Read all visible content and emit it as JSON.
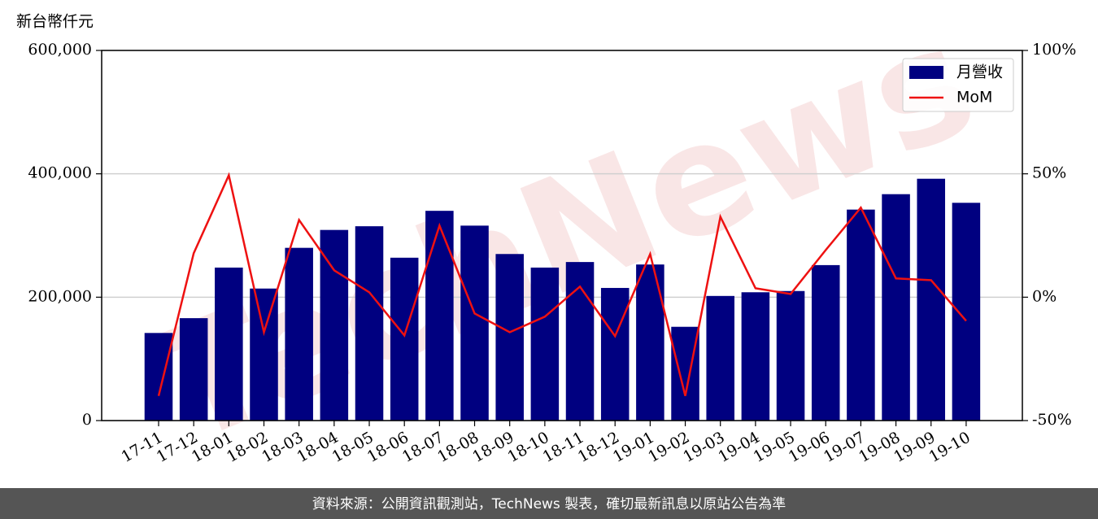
{
  "chart_data": {
    "type": "bar",
    "y_label": "新台幣仟元",
    "watermark": "TechNews",
    "footer": "資料來源：公開資訊觀測站，TechNews 製表，確切最新訊息以原站公告為準",
    "categories": [
      "17-11",
      "17-12",
      "18-01",
      "18-02",
      "18-03",
      "18-04",
      "18-05",
      "18-06",
      "18-07",
      "18-08",
      "18-09",
      "18-10",
      "18-11",
      "18-12",
      "19-01",
      "19-02",
      "19-03",
      "19-04",
      "19-05",
      "19-06",
      "19-07",
      "19-08",
      "19-09",
      "19-10"
    ],
    "series": [
      {
        "name": "月營收",
        "type": "bar",
        "color": "#000080",
        "values": [
          142000,
          166000,
          248000,
          214000,
          280000,
          309000,
          315000,
          264000,
          340000,
          316000,
          270000,
          248000,
          257000,
          215000,
          253000,
          152000,
          202000,
          208000,
          210000,
          252000,
          342000,
          367000,
          392000,
          353000
        ]
      },
      {
        "name": "MoM",
        "type": "line",
        "axis": "y2",
        "color": "#ee1111",
        "values": [
          -40,
          17.8,
          49.4,
          -14.2,
          31.3,
          10.9,
          2,
          -15.5,
          29,
          -6.6,
          -14.2,
          -7.9,
          4.3,
          -15.8,
          17.5,
          -40,
          32.6,
          3.6,
          1.3,
          19.1,
          36.3,
          7.6,
          6.9,
          -9.6
        ]
      }
    ],
    "ylim": [
      0,
      600000
    ],
    "yticks": [
      {
        "value": 0,
        "label": "0"
      },
      {
        "value": 200000,
        "label": "200,000"
      },
      {
        "value": 400000,
        "label": "400,000"
      },
      {
        "value": 600000,
        "label": "600,000"
      }
    ],
    "y2lim": [
      -50,
      100
    ],
    "y2ticks": [
      {
        "value": -50,
        "label": "-50%"
      },
      {
        "value": 0,
        "label": "0%"
      },
      {
        "value": 50,
        "label": "50%"
      },
      {
        "value": 100,
        "label": "100%"
      }
    ],
    "grid": true,
    "legend": "upper right"
  }
}
